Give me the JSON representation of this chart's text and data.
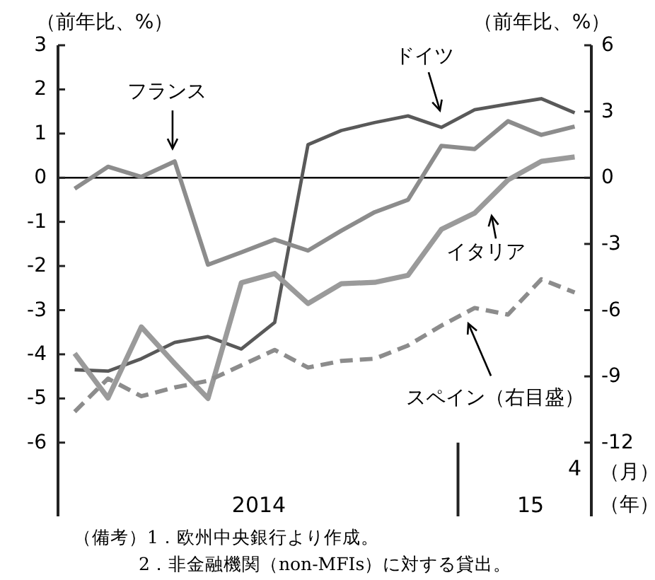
{
  "chart_data": {
    "type": "line",
    "ylabel": "（前年比、%）",
    "y2label": "（前年比、%）",
    "categories": [
      null,
      null,
      null,
      null,
      null,
      null,
      null,
      null,
      null,
      null,
      null,
      null,
      null,
      null,
      null,
      "4"
    ],
    "series": [
      {
        "name": "ドイツ",
        "color": "#595959",
        "values": [
          -4.35,
          -4.38,
          -4.1,
          -3.73,
          -3.6,
          -3.88,
          -3.28,
          0.75,
          1.07,
          1.25,
          1.4,
          1.14,
          1.54,
          1.67,
          1.79,
          1.47
        ]
      },
      {
        "name": "フランス",
        "color": "#8c8c8c",
        "values": [
          -0.25,
          0.25,
          0.02,
          0.37,
          -1.97,
          -1.69,
          -1.4,
          -1.65,
          -1.2,
          -0.78,
          -0.5,
          0.72,
          0.65,
          1.28,
          0.97,
          1.16
        ]
      },
      {
        "name": "イタリア",
        "color": "#9a9a9a",
        "values": [
          -3.98,
          -4.99,
          -3.38,
          -4.21,
          -5.0,
          -2.38,
          -2.17,
          -2.85,
          -2.4,
          -2.37,
          -2.21,
          -1.17,
          -0.8,
          -0.05,
          0.37,
          0.47
        ]
      },
      {
        "name": "スペイン（右目盛）",
        "color": "#8c8c8c",
        "axis": "y2",
        "line_style": "dashed",
        "values": [
          -10.6,
          -9.1,
          -9.9,
          -9.5,
          -9.2,
          -8.5,
          -7.8,
          -8.6,
          -8.3,
          -8.2,
          -7.6,
          -6.7,
          -5.9,
          -6.2,
          -4.6,
          -5.2
        ]
      }
    ],
    "ylim": [
      -7.67,
      3
    ],
    "yticks": [
      -6,
      -5,
      -4,
      -3,
      -2,
      -1,
      0,
      1,
      2,
      3
    ],
    "y2lim": [
      -15.34,
      6
    ],
    "y2ticks": [
      -12,
      -9,
      -6,
      -3,
      0,
      3,
      6
    ],
    "ref_lines": [
      {
        "axis": "y",
        "value": 0,
        "color": "#000000"
      }
    ],
    "annotations": [
      "2014",
      "15",
      "（月）",
      "（年）",
      "（備考）1．欧州中央銀行より作成。",
      "2．非金融機関（non-MFIs）に対する貸出。"
    ]
  }
}
